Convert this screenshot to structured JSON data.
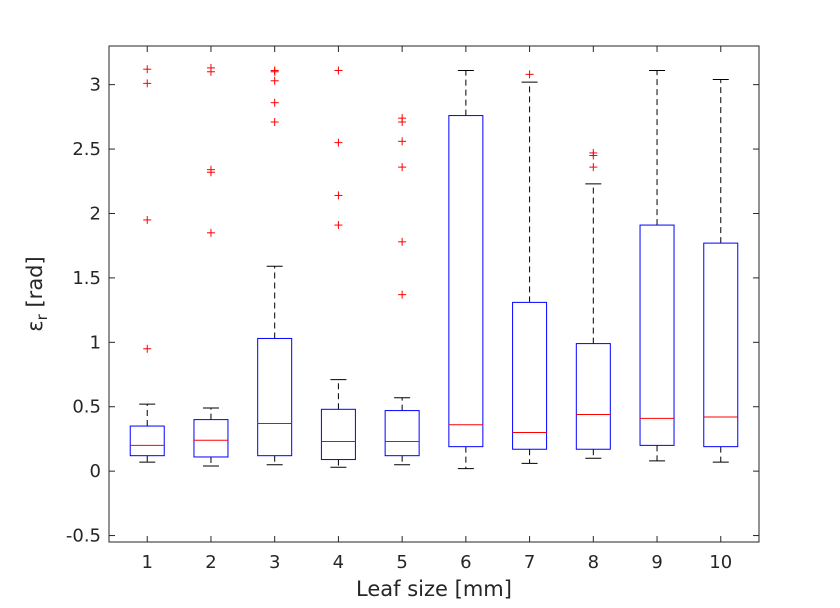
{
  "chart_data": {
    "type": "box",
    "xlabel": "Leaf size [mm]",
    "ylabel_symbol": "ε",
    "ylabel_sub": "r",
    "ylabel_unit": " [rad]",
    "ylim": [
      -0.55,
      3.3
    ],
    "xlim": [
      0.4,
      10.6
    ],
    "yticks": [
      -0.5,
      0,
      0.5,
      1,
      1.5,
      2,
      2.5,
      3
    ],
    "ytick_labels": [
      "-0.5",
      "0",
      "0.5",
      "1",
      "1.5",
      "2",
      "2.5",
      "3"
    ],
    "categories": [
      "1",
      "2",
      "3",
      "4",
      "5",
      "6",
      "7",
      "8",
      "9",
      "10"
    ],
    "colors": {
      "box": "#0000ff",
      "median": "#ff0000",
      "whisker": "#000000",
      "outlier": "#ff0000",
      "axis": "#262626"
    },
    "boxes": [
      {
        "category": "1",
        "lower_whisker": 0.07,
        "q1": 0.12,
        "median": 0.2,
        "q3": 0.35,
        "upper_whisker": 0.52,
        "outliers": [
          0.95,
          1.95,
          3.01,
          3.12
        ]
      },
      {
        "category": "2",
        "lower_whisker": 0.04,
        "q1": 0.11,
        "median": 0.24,
        "q3": 0.4,
        "upper_whisker": 0.49,
        "outliers": [
          1.85,
          2.32,
          2.34,
          3.1,
          3.13
        ]
      },
      {
        "category": "3",
        "lower_whisker": 0.05,
        "q1": 0.12,
        "median": 0.37,
        "q3": 1.03,
        "upper_whisker": 1.59,
        "outliers": [
          2.71,
          2.86,
          3.03,
          3.1,
          3.11
        ]
      },
      {
        "category": "4",
        "lower_whisker": 0.03,
        "q1": 0.09,
        "median": 0.23,
        "q3": 0.48,
        "upper_whisker": 0.71,
        "outliers": [
          1.91,
          2.14,
          2.55,
          3.11
        ]
      },
      {
        "category": "5",
        "lower_whisker": 0.05,
        "q1": 0.12,
        "median": 0.23,
        "q3": 0.47,
        "upper_whisker": 0.57,
        "outliers": [
          1.37,
          1.78,
          2.36,
          2.56,
          2.71,
          2.74
        ]
      },
      {
        "category": "6",
        "lower_whisker": 0.02,
        "q1": 0.19,
        "median": 0.36,
        "q3": 2.76,
        "upper_whisker": 3.11,
        "outliers": []
      },
      {
        "category": "7",
        "lower_whisker": 0.06,
        "q1": 0.17,
        "median": 0.3,
        "q3": 1.31,
        "upper_whisker": 3.02,
        "outliers": [
          3.08
        ]
      },
      {
        "category": "8",
        "lower_whisker": 0.1,
        "q1": 0.17,
        "median": 0.44,
        "q3": 0.99,
        "upper_whisker": 2.23,
        "outliers": [
          2.36,
          2.45,
          2.47
        ]
      },
      {
        "category": "9",
        "lower_whisker": 0.08,
        "q1": 0.2,
        "median": 0.41,
        "q3": 1.91,
        "upper_whisker": 3.11,
        "outliers": []
      },
      {
        "category": "10",
        "lower_whisker": 0.07,
        "q1": 0.19,
        "median": 0.42,
        "q3": 1.77,
        "upper_whisker": 3.04,
        "outliers": []
      }
    ]
  }
}
